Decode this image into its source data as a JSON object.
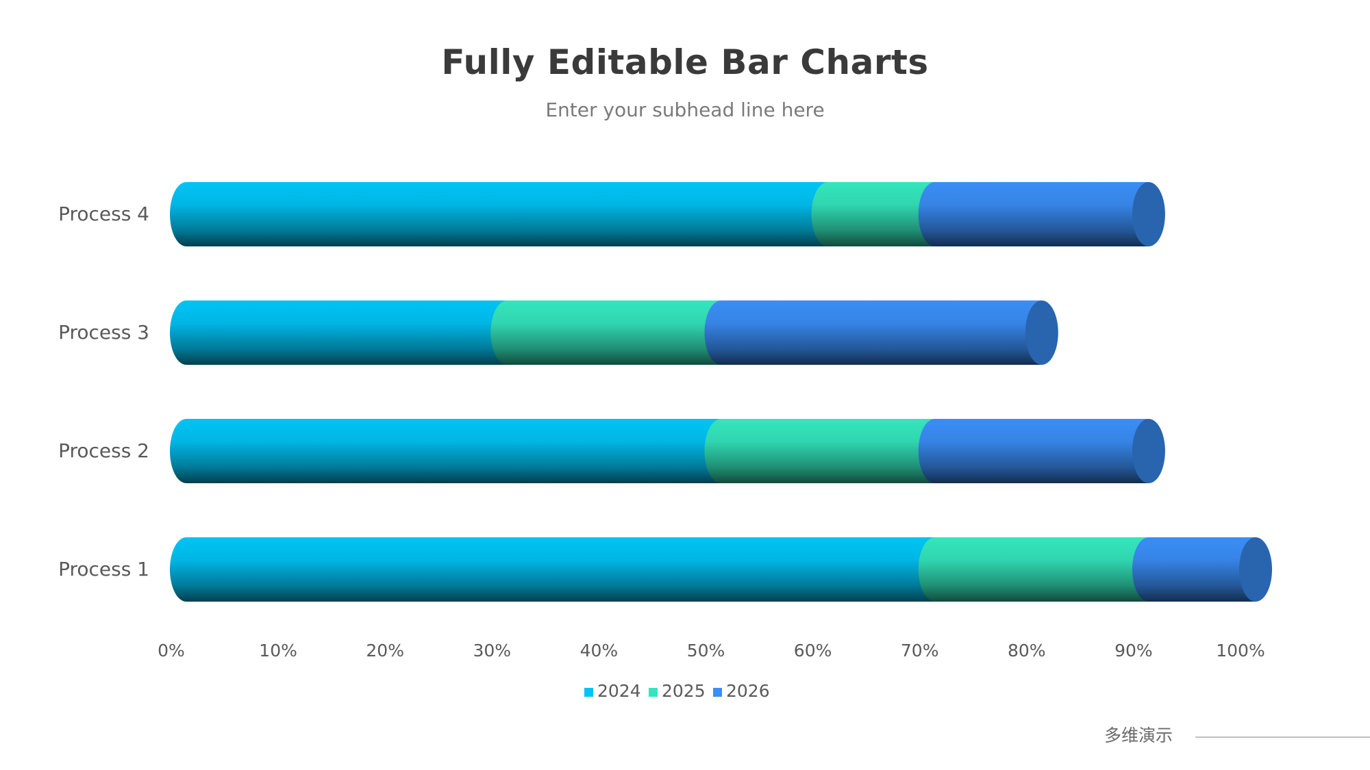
{
  "slide": {
    "title": "Fully Editable Bar Charts",
    "subtitle": "Enter your subhead line here",
    "brand": "多维演示"
  },
  "chart_data": {
    "type": "bar",
    "orientation": "horizontal",
    "stacked": true,
    "style": "3d-cylinder",
    "categories": [
      "Process 1",
      "Process 2",
      "Process 3",
      "Process 4"
    ],
    "series": [
      {
        "name": "2024",
        "values": [
          70,
          50,
          30,
          60
        ],
        "color": "#00C4F5"
      },
      {
        "name": "2025",
        "values": [
          20,
          20,
          20,
          10
        ],
        "color": "#34E6BD"
      },
      {
        "name": "2026",
        "values": [
          10,
          20,
          30,
          20
        ],
        "color": "#3A8EF6"
      }
    ],
    "x_ticks": [
      "0%",
      "10%",
      "20%",
      "30%",
      "40%",
      "50%",
      "60%",
      "70%",
      "80%",
      "90%",
      "100%"
    ],
    "xlim": [
      0,
      100
    ],
    "grid": false,
    "legend_position": "bottom"
  },
  "colors": {
    "title": "#3a3a3a",
    "subtitle": "#7a7a7a",
    "axis_text": "#595959",
    "cap": "#2865AE"
  }
}
